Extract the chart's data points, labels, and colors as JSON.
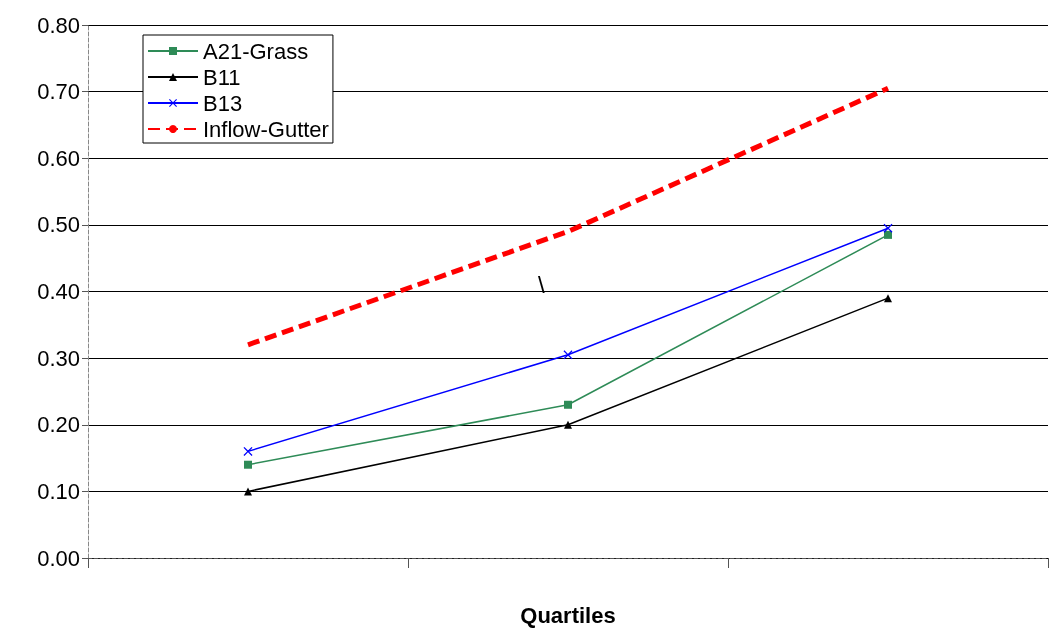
{
  "chart_data": {
    "type": "line",
    "xlabel": "Quartiles",
    "categories": [
      null,
      null,
      null
    ],
    "series": [
      {
        "name": "A21-Grass",
        "color": "#2e8b57",
        "marker": "square",
        "line_style": "solid",
        "values": [
          0.14,
          0.23,
          0.485
        ]
      },
      {
        "name": "B11",
        "color": "#000000",
        "marker": "triangle",
        "line_style": "solid",
        "values": [
          0.1,
          0.2,
          0.39
        ]
      },
      {
        "name": "B13",
        "color": "#0000ff",
        "marker": "cross",
        "line_style": "solid",
        "values": [
          0.16,
          0.305,
          0.495
        ]
      },
      {
        "name": "Inflow-Gutter",
        "color": "#ff0000",
        "marker": "none",
        "line_style": "dashed",
        "values": [
          0.32,
          0.49,
          0.705
        ]
      }
    ],
    "ylim": [
      0,
      0.8
    ],
    "yticks": [
      {
        "value": 0,
        "label": "0.00"
      },
      {
        "value": 0.1,
        "label": "0.10"
      },
      {
        "value": 0.2,
        "label": "0.20"
      },
      {
        "value": 0.3,
        "label": "0.30"
      },
      {
        "value": 0.4,
        "label": "0.40"
      },
      {
        "value": 0.5,
        "label": "0.50"
      },
      {
        "value": 0.6,
        "label": "0.60"
      },
      {
        "value": 0.7,
        "label": "0.70"
      },
      {
        "value": 0.8,
        "label": "0.80"
      }
    ],
    "grid": "y",
    "legend": "top left",
    "annotations": [
      "\\"
    ]
  }
}
